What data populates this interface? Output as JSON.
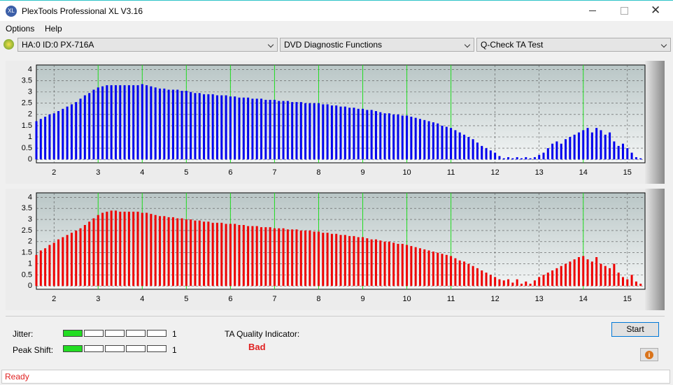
{
  "window": {
    "title": "PlexTools Professional XL V3.16"
  },
  "menu": [
    "Options",
    "Help"
  ],
  "dropdowns": [
    "HA:0 ID:0  PX-716A",
    "DVD Diagnostic Functions",
    "Q-Check TA Test"
  ],
  "chart_data": [
    {
      "type": "bar",
      "color": "#0000ee",
      "marker_color": "#22dd22",
      "grid": true,
      "xlim": [
        1.6,
        15.4
      ],
      "ylim": [
        -0.15,
        4.2
      ],
      "xticks": [
        2,
        3,
        4,
        5,
        6,
        7,
        8,
        9,
        10,
        11,
        12,
        13,
        14,
        15
      ],
      "yticks": [
        0,
        0.5,
        1,
        1.5,
        2,
        2.5,
        3,
        3.5,
        4
      ],
      "markers": [
        3,
        4,
        5,
        6,
        7,
        8,
        9,
        10,
        11,
        14
      ],
      "x": [
        1.6,
        1.7,
        1.8,
        1.9,
        2.0,
        2.1,
        2.2,
        2.3,
        2.4,
        2.5,
        2.6,
        2.7,
        2.8,
        2.9,
        3.0,
        3.1,
        3.2,
        3.3,
        3.4,
        3.5,
        3.6,
        3.7,
        3.8,
        3.9,
        4.0,
        4.1,
        4.2,
        4.3,
        4.4,
        4.5,
        4.6,
        4.7,
        4.8,
        4.9,
        5.0,
        5.1,
        5.2,
        5.3,
        5.4,
        5.5,
        5.6,
        5.7,
        5.8,
        5.9,
        6.0,
        6.1,
        6.2,
        6.3,
        6.4,
        6.5,
        6.6,
        6.7,
        6.8,
        6.9,
        7.0,
        7.1,
        7.2,
        7.3,
        7.4,
        7.5,
        7.6,
        7.7,
        7.8,
        7.9,
        8.0,
        8.1,
        8.2,
        8.3,
        8.4,
        8.5,
        8.6,
        8.7,
        8.8,
        8.9,
        9.0,
        9.1,
        9.2,
        9.3,
        9.4,
        9.5,
        9.6,
        9.7,
        9.8,
        9.9,
        10.0,
        10.1,
        10.2,
        10.3,
        10.4,
        10.5,
        10.6,
        10.7,
        10.8,
        10.9,
        11.0,
        11.1,
        11.2,
        11.3,
        11.4,
        11.5,
        11.6,
        11.7,
        11.8,
        11.9,
        12.0,
        12.1,
        12.2,
        12.3,
        12.4,
        12.5,
        12.6,
        12.7,
        12.8,
        12.9,
        13.0,
        13.1,
        13.2,
        13.3,
        13.4,
        13.5,
        13.6,
        13.7,
        13.8,
        13.9,
        14.0,
        14.1,
        14.2,
        14.3,
        14.4,
        14.5,
        14.6,
        14.7,
        14.8,
        14.9,
        15.0,
        15.1,
        15.2,
        15.3
      ],
      "values": [
        1.7,
        1.8,
        1.9,
        2.0,
        2.05,
        2.15,
        2.25,
        2.35,
        2.45,
        2.55,
        2.7,
        2.85,
        2.95,
        3.1,
        3.2,
        3.25,
        3.3,
        3.3,
        3.3,
        3.3,
        3.3,
        3.3,
        3.3,
        3.3,
        3.35,
        3.3,
        3.25,
        3.2,
        3.15,
        3.15,
        3.1,
        3.1,
        3.1,
        3.05,
        3.05,
        3.0,
        2.95,
        2.95,
        2.9,
        2.9,
        2.9,
        2.85,
        2.85,
        2.85,
        2.8,
        2.8,
        2.75,
        2.75,
        2.75,
        2.7,
        2.7,
        2.7,
        2.65,
        2.65,
        2.65,
        2.6,
        2.6,
        2.6,
        2.55,
        2.55,
        2.55,
        2.5,
        2.5,
        2.5,
        2.5,
        2.45,
        2.45,
        2.4,
        2.4,
        2.35,
        2.35,
        2.3,
        2.3,
        2.25,
        2.25,
        2.2,
        2.2,
        2.15,
        2.1,
        2.05,
        2.05,
        2.0,
        2.0,
        1.95,
        1.95,
        1.9,
        1.85,
        1.8,
        1.75,
        1.7,
        1.65,
        1.6,
        1.5,
        1.45,
        1.4,
        1.3,
        1.2,
        1.1,
        1.0,
        0.9,
        0.75,
        0.6,
        0.5,
        0.4,
        0.3,
        0.15,
        0.05,
        0.1,
        0.05,
        0.1,
        0.05,
        0.1,
        0.05,
        0.1,
        0.2,
        0.3,
        0.5,
        0.7,
        0.8,
        0.7,
        0.9,
        1.0,
        1.1,
        1.2,
        1.3,
        1.4,
        1.2,
        1.4,
        1.3,
        1.1,
        1.2,
        0.8,
        0.6,
        0.7,
        0.5,
        0.3,
        0.1,
        0.05
      ]
    },
    {
      "type": "bar",
      "color": "#ee0000",
      "marker_color": "#22dd22",
      "grid": true,
      "xlim": [
        1.6,
        15.4
      ],
      "ylim": [
        -0.15,
        4.2
      ],
      "xticks": [
        2,
        3,
        4,
        5,
        6,
        7,
        8,
        9,
        10,
        11,
        12,
        13,
        14,
        15
      ],
      "yticks": [
        0,
        0.5,
        1,
        1.5,
        2,
        2.5,
        3,
        3.5,
        4
      ],
      "markers": [
        3,
        4,
        5,
        6,
        7,
        8,
        9,
        10,
        11,
        14
      ],
      "x": [
        1.6,
        1.7,
        1.8,
        1.9,
        2.0,
        2.1,
        2.2,
        2.3,
        2.4,
        2.5,
        2.6,
        2.7,
        2.8,
        2.9,
        3.0,
        3.1,
        3.2,
        3.3,
        3.4,
        3.5,
        3.6,
        3.7,
        3.8,
        3.9,
        4.0,
        4.1,
        4.2,
        4.3,
        4.4,
        4.5,
        4.6,
        4.7,
        4.8,
        4.9,
        5.0,
        5.1,
        5.2,
        5.3,
        5.4,
        5.5,
        5.6,
        5.7,
        5.8,
        5.9,
        6.0,
        6.1,
        6.2,
        6.3,
        6.4,
        6.5,
        6.6,
        6.7,
        6.8,
        6.9,
        7.0,
        7.1,
        7.2,
        7.3,
        7.4,
        7.5,
        7.6,
        7.7,
        7.8,
        7.9,
        8.0,
        8.1,
        8.2,
        8.3,
        8.4,
        8.5,
        8.6,
        8.7,
        8.8,
        8.9,
        9.0,
        9.1,
        9.2,
        9.3,
        9.4,
        9.5,
        9.6,
        9.7,
        9.8,
        9.9,
        10.0,
        10.1,
        10.2,
        10.3,
        10.4,
        10.5,
        10.6,
        10.7,
        10.8,
        10.9,
        11.0,
        11.1,
        11.2,
        11.3,
        11.4,
        11.5,
        11.6,
        11.7,
        11.8,
        11.9,
        12.0,
        12.1,
        12.2,
        12.3,
        12.4,
        12.5,
        12.6,
        12.7,
        12.8,
        12.9,
        13.0,
        13.1,
        13.2,
        13.3,
        13.4,
        13.5,
        13.6,
        13.7,
        13.8,
        13.9,
        14.0,
        14.1,
        14.2,
        14.3,
        14.4,
        14.5,
        14.6,
        14.7,
        14.8,
        14.9,
        15.0,
        15.1,
        15.2,
        15.3
      ],
      "values": [
        1.4,
        1.6,
        1.7,
        1.85,
        1.95,
        2.1,
        2.2,
        2.3,
        2.4,
        2.5,
        2.6,
        2.75,
        2.9,
        3.05,
        3.2,
        3.3,
        3.35,
        3.4,
        3.4,
        3.35,
        3.35,
        3.35,
        3.35,
        3.35,
        3.3,
        3.3,
        3.25,
        3.2,
        3.15,
        3.15,
        3.1,
        3.1,
        3.05,
        3.05,
        3.0,
        3.0,
        2.95,
        2.95,
        2.9,
        2.9,
        2.85,
        2.85,
        2.85,
        2.8,
        2.8,
        2.8,
        2.75,
        2.75,
        2.7,
        2.7,
        2.7,
        2.65,
        2.65,
        2.65,
        2.6,
        2.6,
        2.6,
        2.55,
        2.55,
        2.55,
        2.5,
        2.5,
        2.5,
        2.45,
        2.45,
        2.4,
        2.4,
        2.35,
        2.35,
        2.3,
        2.3,
        2.25,
        2.25,
        2.2,
        2.2,
        2.15,
        2.1,
        2.1,
        2.05,
        2.0,
        2.0,
        1.95,
        1.9,
        1.9,
        1.85,
        1.8,
        1.75,
        1.7,
        1.65,
        1.6,
        1.55,
        1.5,
        1.45,
        1.4,
        1.35,
        1.25,
        1.15,
        1.1,
        1.0,
        0.9,
        0.8,
        0.7,
        0.6,
        0.5,
        0.4,
        0.3,
        0.25,
        0.3,
        0.15,
        0.3,
        0.1,
        0.2,
        0.1,
        0.25,
        0.4,
        0.5,
        0.6,
        0.7,
        0.8,
        0.9,
        1.0,
        1.1,
        1.2,
        1.3,
        1.35,
        1.2,
        1.1,
        1.3,
        1.0,
        0.9,
        0.8,
        1.0,
        0.6,
        0.4,
        0.3,
        0.5,
        0.2,
        0.1
      ]
    }
  ],
  "jitter": {
    "label": "Jitter:",
    "value": 1
  },
  "peak_shift": {
    "label": "Peak Shift:",
    "value": 1
  },
  "ta_quality": {
    "label": "TA Quality Indicator:",
    "value": "Bad"
  },
  "start_button": "Start",
  "status": "Ready"
}
